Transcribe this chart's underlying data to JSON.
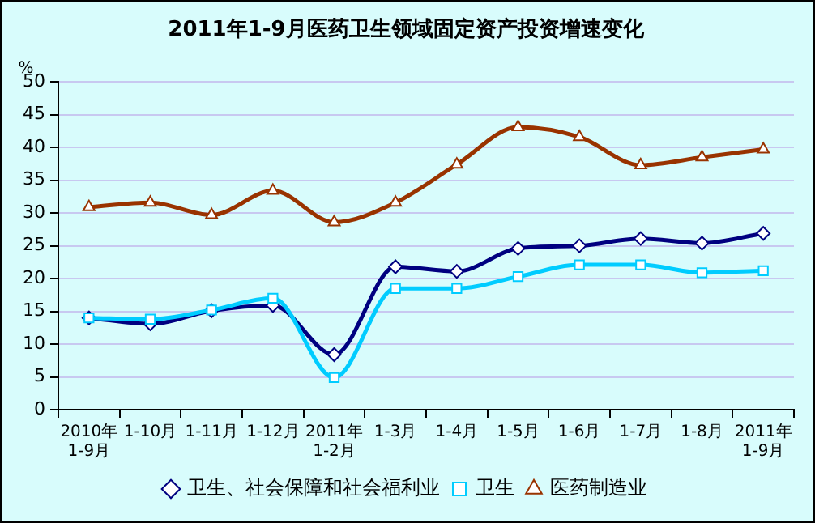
{
  "chart_data": {
    "type": "line",
    "title": "2011年1-9月医药卫生领域固定资产投资增速变化",
    "ylabel": "%",
    "categories": [
      "2010年\n1-9月",
      "1-10月",
      "1-11月",
      "1-12月",
      "2011年\n1-2月",
      "1-3月",
      "1-4月",
      "1-5月",
      "1-6月",
      "1-7月",
      "1-8月",
      "2011年\n1-9月"
    ],
    "series": [
      {
        "name": "卫生、社会保障和社会福利业",
        "color": "#000080",
        "marker": "diamond",
        "values": [
          14.0,
          13.1,
          15.1,
          15.9,
          8.4,
          21.8,
          21.1,
          24.6,
          25.0,
          26.1,
          25.4,
          26.9
        ]
      },
      {
        "name": "卫生",
        "color": "#00ccff",
        "marker": "square",
        "values": [
          14.0,
          13.8,
          15.2,
          17.0,
          4.9,
          18.5,
          18.5,
          20.3,
          22.1,
          22.1,
          20.9,
          21.2
        ]
      },
      {
        "name": "医药制造业",
        "color": "#993300",
        "marker": "triangle",
        "values": [
          30.9,
          31.6,
          29.7,
          33.4,
          28.6,
          31.6,
          37.4,
          43.1,
          41.6,
          37.3,
          38.5,
          39.7
        ]
      }
    ],
    "ylim": [
      0,
      50
    ],
    "yticks": [
      0,
      5,
      10,
      15,
      20,
      25,
      30,
      35,
      40,
      45,
      50
    ],
    "grid": "y",
    "legend": "bottom"
  }
}
